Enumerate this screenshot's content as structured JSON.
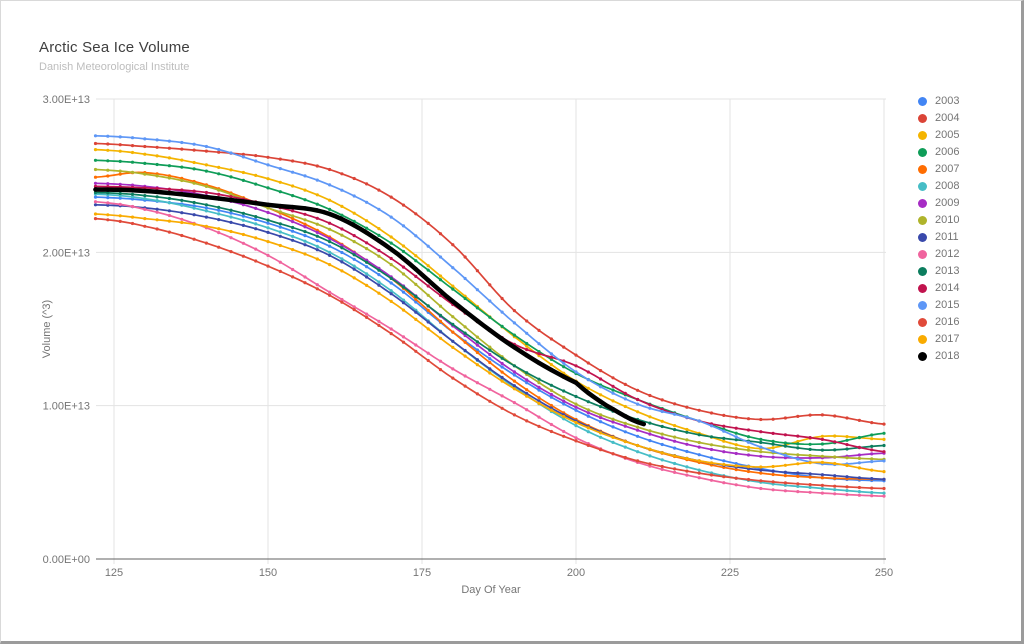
{
  "header": {
    "title": "Arctic Sea Ice Volume",
    "subtitle": "Danish Meteorological Institute"
  },
  "chart_data": {
    "type": "line",
    "title": "Arctic Sea Ice Volume",
    "subtitle": "Danish Meteorological Institute",
    "xlabel": "Day Of Year",
    "ylabel": "Volume (^3)",
    "grid": true,
    "legend_position": "right",
    "x_range": [
      122,
      250
    ],
    "y_range_e13": [
      0,
      3
    ],
    "unit_scale": "1e13",
    "x_ticks": [
      125,
      150,
      175,
      200,
      225,
      250
    ],
    "y_ticks": [
      {
        "label": "0.00E+00",
        "value_e13": 0
      },
      {
        "label": "1.00E+13",
        "value_e13": 1
      },
      {
        "label": "2.00E+13",
        "value_e13": 2
      },
      {
        "label": "3.00E+13",
        "value_e13": 3
      }
    ],
    "marker_interval_days": 2,
    "control_days": [
      122,
      130,
      140,
      150,
      160,
      170,
      180,
      190,
      200,
      210,
      220,
      230,
      240,
      250
    ],
    "series": [
      {
        "name": "2003",
        "color": "#4285F4",
        "values_e13": [
          2.36,
          2.34,
          2.29,
          2.19,
          2.04,
          1.8,
          1.48,
          1.2,
          0.97,
          0.8,
          0.68,
          0.59,
          0.53,
          0.51
        ]
      },
      {
        "name": "2004",
        "color": "#DB4437",
        "values_e13": [
          2.71,
          2.69,
          2.66,
          2.62,
          2.54,
          2.36,
          2.05,
          1.62,
          1.33,
          1.1,
          0.97,
          0.91,
          0.94,
          0.88
        ]
      },
      {
        "name": "2005",
        "color": "#F4B400",
        "values_e13": [
          2.67,
          2.64,
          2.57,
          2.48,
          2.34,
          2.1,
          1.78,
          1.45,
          1.16,
          0.96,
          0.82,
          0.72,
          0.8,
          0.78
        ]
      },
      {
        "name": "2006",
        "color": "#0F9D58",
        "values_e13": [
          2.6,
          2.58,
          2.53,
          2.42,
          2.28,
          2.06,
          1.76,
          1.46,
          1.21,
          1.04,
          0.9,
          0.78,
          0.75,
          0.82
        ]
      },
      {
        "name": "2007",
        "color": "#FF6D01",
        "values_e13": [
          2.49,
          2.52,
          2.44,
          2.29,
          2.1,
          1.83,
          1.48,
          1.16,
          0.91,
          0.74,
          0.63,
          0.56,
          0.53,
          0.52
        ]
      },
      {
        "name": "2008",
        "color": "#46BDC6",
        "values_e13": [
          2.38,
          2.35,
          2.27,
          2.16,
          2.0,
          1.75,
          1.42,
          1.12,
          0.87,
          0.7,
          0.58,
          0.5,
          0.46,
          0.43
        ]
      },
      {
        "name": "2009",
        "color": "#A62CC4",
        "values_e13": [
          2.45,
          2.43,
          2.37,
          2.26,
          2.09,
          1.84,
          1.52,
          1.22,
          0.99,
          0.84,
          0.73,
          0.67,
          0.66,
          0.69
        ]
      },
      {
        "name": "2010",
        "color": "#AFB42B",
        "values_e13": [
          2.54,
          2.51,
          2.43,
          2.29,
          2.15,
          1.92,
          1.58,
          1.26,
          1.01,
          0.86,
          0.76,
          0.7,
          0.67,
          0.65
        ]
      },
      {
        "name": "2011",
        "color": "#3949AB",
        "values_e13": [
          2.31,
          2.29,
          2.23,
          2.13,
          1.98,
          1.73,
          1.42,
          1.13,
          0.9,
          0.74,
          0.64,
          0.58,
          0.55,
          0.52
        ]
      },
      {
        "name": "2012",
        "color": "#F0649E",
        "values_e13": [
          2.33,
          2.28,
          2.16,
          1.98,
          1.74,
          1.5,
          1.24,
          1.02,
          0.79,
          0.63,
          0.53,
          0.46,
          0.43,
          0.41
        ]
      },
      {
        "name": "2013",
        "color": "#0C7D5E",
        "values_e13": [
          2.39,
          2.37,
          2.31,
          2.21,
          2.07,
          1.83,
          1.53,
          1.26,
          1.06,
          0.91,
          0.81,
          0.76,
          0.71,
          0.74
        ]
      },
      {
        "name": "2014",
        "color": "#C1134E",
        "values_e13": [
          2.43,
          2.42,
          2.39,
          2.31,
          2.19,
          1.96,
          1.66,
          1.4,
          1.26,
          1.04,
          0.9,
          0.83,
          0.78,
          0.7
        ]
      },
      {
        "name": "2015",
        "color": "#5E97F6",
        "values_e13": [
          2.76,
          2.74,
          2.69,
          2.57,
          2.44,
          2.23,
          1.9,
          1.54,
          1.22,
          1.01,
          0.9,
          0.73,
          0.62,
          0.64
        ]
      },
      {
        "name": "2016",
        "color": "#E04A3A",
        "values_e13": [
          2.22,
          2.17,
          2.06,
          1.91,
          1.72,
          1.47,
          1.18,
          0.94,
          0.77,
          0.64,
          0.56,
          0.51,
          0.48,
          0.46
        ]
      },
      {
        "name": "2017",
        "color": "#F9AB00",
        "values_e13": [
          2.25,
          2.22,
          2.17,
          2.07,
          1.92,
          1.68,
          1.38,
          1.11,
          0.89,
          0.74,
          0.64,
          0.6,
          0.63,
          0.57
        ]
      },
      {
        "name": "2018",
        "color": "#000000",
        "days": [
          122,
          130,
          140,
          150,
          160,
          170,
          180,
          190,
          200,
          205,
          211
        ],
        "values_e13": [
          2.41,
          2.4,
          2.36,
          2.31,
          2.25,
          2.02,
          1.68,
          1.38,
          1.15,
          1.0,
          0.88
        ],
        "emphasis": true
      }
    ]
  }
}
